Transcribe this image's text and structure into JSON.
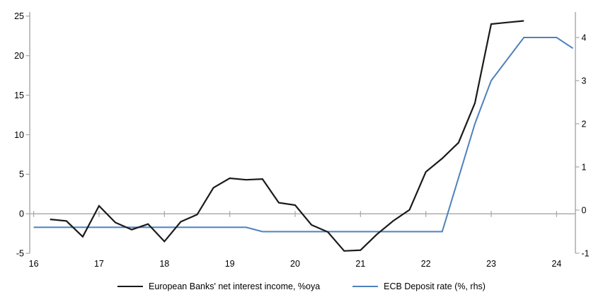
{
  "chart_data": {
    "type": "line",
    "title": "",
    "x_axis": {
      "ticks": [
        16,
        17,
        18,
        19,
        20,
        21,
        22,
        23,
        24
      ],
      "range": [
        16,
        24.3
      ],
      "tick_style": "cross-at-zero-line"
    },
    "left_axis": {
      "ticks": [
        -5,
        0,
        5,
        10,
        15,
        20,
        25
      ],
      "range": [
        -5,
        25.5
      ]
    },
    "right_axis": {
      "ticks": [
        -1,
        0,
        1,
        2,
        3,
        4
      ],
      "range": [
        -1,
        4.6
      ]
    },
    "grid": "zero-line-only",
    "legend_position": "bottom",
    "series": [
      {
        "name": "European Banks' net interest income, %oya",
        "axis": "left",
        "color": "#1a1a1a",
        "stroke_width": 2.2,
        "x": [
          16.25,
          16.5,
          16.75,
          17.0,
          17.25,
          17.5,
          17.75,
          18.0,
          18.25,
          18.5,
          18.75,
          19.0,
          19.25,
          19.5,
          19.75,
          20.0,
          20.25,
          20.5,
          20.75,
          21.0,
          21.25,
          21.5,
          21.75,
          22.0,
          22.25,
          22.5,
          22.75,
          23.0,
          23.25,
          23.5
        ],
        "values": [
          -0.7,
          -0.9,
          -2.9,
          1.0,
          -1.1,
          -2.0,
          -1.3,
          -3.5,
          -1.0,
          -0.1,
          3.3,
          4.5,
          4.3,
          4.4,
          1.4,
          1.1,
          -1.4,
          -2.3,
          -4.7,
          -4.6,
          -2.6,
          -0.9,
          0.5,
          5.3,
          7.0,
          9.0,
          14.0,
          24.0,
          24.2,
          24.4
        ]
      },
      {
        "name": "ECB Deposit rate (%, rhs)",
        "axis": "right",
        "color": "#4e81bd",
        "stroke_width": 2,
        "x": [
          16.0,
          16.25,
          16.5,
          16.75,
          17.0,
          17.25,
          17.5,
          17.75,
          18.0,
          18.25,
          18.5,
          18.75,
          19.0,
          19.25,
          19.5,
          19.75,
          20.0,
          20.25,
          20.5,
          20.75,
          21.0,
          21.25,
          21.5,
          21.75,
          22.0,
          22.25,
          22.5,
          22.75,
          23.0,
          23.25,
          23.5,
          23.75,
          24.0,
          24.25
        ],
        "values": [
          -0.4,
          -0.4,
          -0.4,
          -0.4,
          -0.4,
          -0.4,
          -0.4,
          -0.4,
          -0.4,
          -0.4,
          -0.4,
          -0.4,
          -0.4,
          -0.4,
          -0.5,
          -0.5,
          -0.5,
          -0.5,
          -0.5,
          -0.5,
          -0.5,
          -0.5,
          -0.5,
          -0.5,
          -0.5,
          -0.5,
          0.75,
          2.0,
          3.0,
          3.5,
          4.0,
          4.0,
          4.0,
          3.75
        ]
      }
    ],
    "axis_color": "#a6a6a6"
  },
  "legend": {
    "series1": "European Banks' net interest income, %oya",
    "series2": "ECB Deposit rate (%, rhs)"
  }
}
